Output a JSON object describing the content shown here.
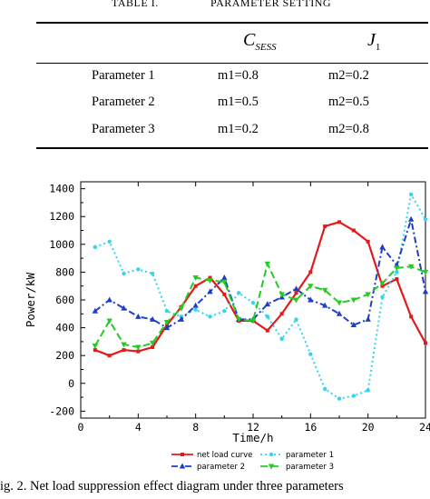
{
  "table": {
    "title_label": "TABLE I.",
    "title_text": "PARAMETER SETTING",
    "col1_main": "C",
    "col1_sub": "SESS",
    "col2_main": "J",
    "col2_sub": "1",
    "rows": [
      {
        "name": "Parameter 1",
        "c": "m1=0.8",
        "j": "m2=0.2"
      },
      {
        "name": "Parameter 2",
        "c": "m1=0.5",
        "j": "m2=0.5"
      },
      {
        "name": "Parameter 3",
        "c": "m1=0.2",
        "j": "m2=0.8"
      }
    ]
  },
  "caption": "ig. 2. Net load suppression effect diagram under three parameters",
  "chart_data": {
    "type": "line",
    "xlabel": "Time/h",
    "ylabel": "Power/kW",
    "xlim": [
      0,
      24
    ],
    "ylim": [
      -250,
      1450
    ],
    "xticks": [
      0,
      4,
      8,
      12,
      16,
      20,
      24
    ],
    "yticks": [
      -200,
      0,
      200,
      400,
      600,
      800,
      1000,
      1200,
      1400
    ],
    "legend_position": "bottom",
    "series": [
      {
        "name": "net load curve",
        "color": "#e31a1c",
        "style": "solid-square",
        "x": [
          1,
          2,
          3,
          4,
          5,
          6,
          7,
          8,
          9,
          10,
          11,
          12,
          13,
          14,
          15,
          16,
          17,
          18,
          19,
          20,
          21,
          22,
          23,
          24
        ],
        "values": [
          240,
          200,
          240,
          230,
          260,
          420,
          550,
          700,
          760,
          640,
          450,
          450,
          380,
          500,
          650,
          800,
          1130,
          1160,
          1100,
          1020,
          700,
          750,
          480,
          290
        ]
      },
      {
        "name": "parameter 1",
        "color": "#33d6ee",
        "style": "dot-circle",
        "x": [
          1,
          2,
          3,
          4,
          5,
          6,
          7,
          8,
          9,
          10,
          11,
          12,
          13,
          14,
          15,
          16,
          17,
          18,
          19,
          20,
          21,
          22,
          23,
          24
        ],
        "values": [
          980,
          1020,
          790,
          820,
          790,
          520,
          480,
          530,
          480,
          520,
          650,
          580,
          480,
          320,
          460,
          210,
          -40,
          -110,
          -90,
          -50,
          620,
          800,
          1360,
          1180
        ]
      },
      {
        "name": "parameter 2",
        "color": "#1f3ec8",
        "style": "dashdot-triangle",
        "x": [
          1,
          2,
          3,
          4,
          5,
          6,
          7,
          8,
          9,
          10,
          11,
          12,
          13,
          14,
          15,
          16,
          17,
          18,
          19,
          20,
          21,
          22,
          23,
          24
        ],
        "values": [
          520,
          600,
          540,
          480,
          460,
          400,
          460,
          560,
          660,
          760,
          460,
          460,
          570,
          620,
          680,
          600,
          560,
          500,
          420,
          460,
          980,
          850,
          1180,
          660
        ]
      },
      {
        "name": "parameter 3",
        "color": "#22cc22",
        "style": "dash-triangle",
        "x": [
          1,
          2,
          3,
          4,
          5,
          6,
          7,
          8,
          9,
          10,
          11,
          12,
          13,
          14,
          15,
          16,
          17,
          18,
          19,
          20,
          21,
          22,
          23,
          24
        ],
        "values": [
          270,
          450,
          280,
          260,
          290,
          440,
          540,
          760,
          740,
          730,
          460,
          450,
          860,
          640,
          600,
          700,
          670,
          580,
          600,
          640,
          720,
          830,
          840,
          800
        ]
      }
    ]
  }
}
